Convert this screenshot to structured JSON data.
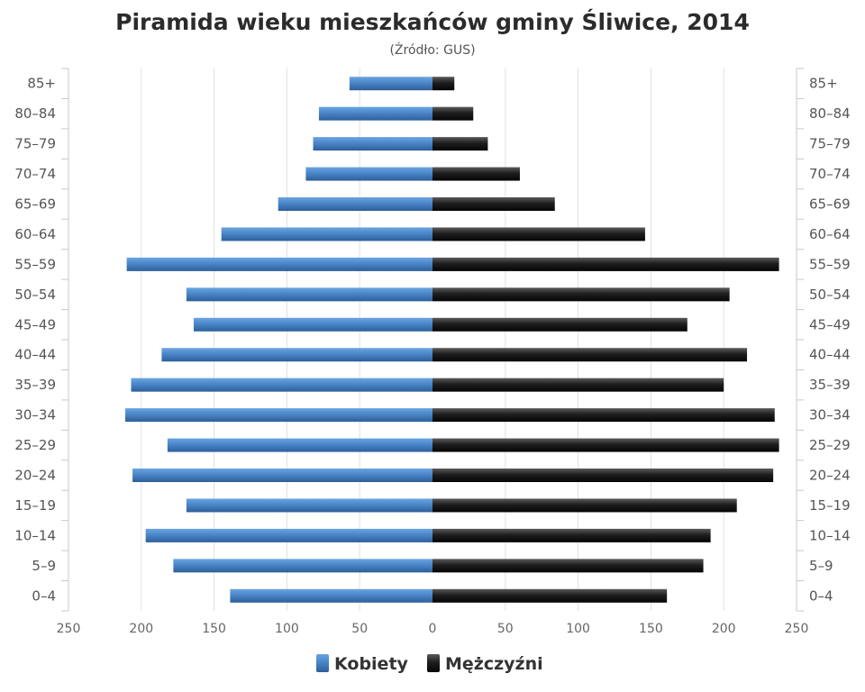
{
  "chart_data": {
    "type": "bar",
    "orientation": "horizontal-population-pyramid",
    "title": "Piramida wieku mieszkańców gminy Śliwice, 2014",
    "subtitle": "(Źródło: GUS)",
    "categories": [
      "85+",
      "80-84",
      "75-79",
      "70-74",
      "65-69",
      "60-64",
      "55-59",
      "50-54",
      "45-49",
      "40-44",
      "35-39",
      "30-34",
      "25-29",
      "20-24",
      "15-19",
      "10-14",
      "5-9",
      "0-4"
    ],
    "x_ticks": [
      "250",
      "200",
      "150",
      "100",
      "50",
      "0",
      "50",
      "100",
      "150",
      "200",
      "250"
    ],
    "xlim": [
      -250,
      250
    ],
    "grid": true,
    "legend_position": "bottom-center",
    "series": [
      {
        "name": "Kobiety",
        "color": "#4a86c8",
        "values": [
          57,
          78,
          82,
          87,
          106,
          145,
          210,
          169,
          164,
          186,
          207,
          211,
          182,
          206,
          169,
          197,
          178,
          139
        ]
      },
      {
        "name": "Mężczyźni",
        "color": "#1e1e1e",
        "values": [
          15,
          28,
          38,
          60,
          84,
          146,
          238,
          204,
          175,
          216,
          200,
          235,
          238,
          234,
          209,
          191,
          186,
          161
        ]
      }
    ]
  }
}
